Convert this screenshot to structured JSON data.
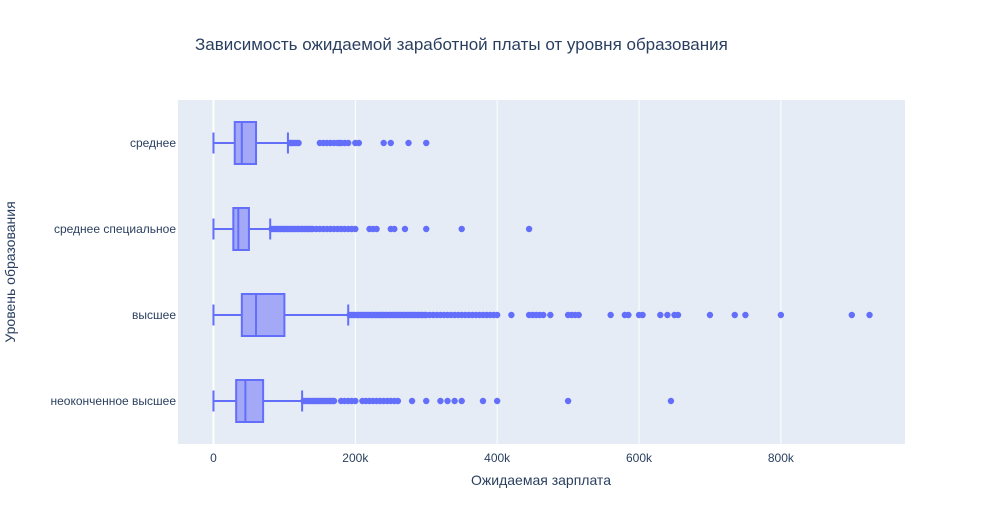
{
  "chart_data": {
    "type": "box",
    "orientation": "horizontal",
    "title": "Зависимость ожидаемой заработной платы от уровня образования",
    "xlabel": "Ожидаемая зарплата",
    "ylabel": "Уровень образования",
    "xlim": [
      -50000,
      975000
    ],
    "x_ticks": [
      {
        "value": 0,
        "label": "0"
      },
      {
        "value": 200000,
        "label": "200k"
      },
      {
        "value": 400000,
        "label": "400k"
      },
      {
        "value": 600000,
        "label": "600k"
      },
      {
        "value": 800000,
        "label": "800k"
      }
    ],
    "grid": true,
    "color": "#636efa",
    "fill_color": "#a3a8f7",
    "background": "#e5ecf6",
    "categories": [
      "среднее",
      "среднее специальное",
      "высшее",
      "неоконченное высшее"
    ],
    "boxes": [
      {
        "category": "среднее",
        "min": 0,
        "q1": 30000,
        "median": 40000,
        "q3": 60000,
        "whisker_high": 105000,
        "outliers": [
          108000,
          110000,
          112000,
          115000,
          118000,
          120000,
          150000,
          155000,
          160000,
          165000,
          170000,
          175000,
          178000,
          180000,
          185000,
          190000,
          200000,
          205000,
          240000,
          250000,
          275000,
          300000
        ]
      },
      {
        "category": "среднее специальное",
        "min": 0,
        "q1": 28000,
        "median": 35000,
        "q3": 50000,
        "whisker_high": 80000,
        "outliers": [
          82000,
          85000,
          88000,
          90000,
          93000,
          95000,
          98000,
          100000,
          103000,
          105000,
          108000,
          110000,
          113000,
          115000,
          118000,
          120000,
          123000,
          125000,
          128000,
          130000,
          133000,
          135000,
          138000,
          140000,
          145000,
          150000,
          155000,
          160000,
          165000,
          170000,
          175000,
          180000,
          185000,
          190000,
          195000,
          200000,
          220000,
          225000,
          230000,
          250000,
          255000,
          270000,
          300000,
          350000,
          445000
        ]
      },
      {
        "category": "высшее",
        "min": 0,
        "q1": 40000,
        "median": 60000,
        "q3": 100000,
        "whisker_high": 190000,
        "outliers": [
          192000,
          195000,
          198000,
          200000,
          203000,
          205000,
          208000,
          210000,
          213000,
          215000,
          218000,
          220000,
          223000,
          225000,
          228000,
          230000,
          233000,
          235000,
          238000,
          240000,
          243000,
          245000,
          248000,
          250000,
          253000,
          255000,
          258000,
          260000,
          263000,
          265000,
          268000,
          270000,
          273000,
          275000,
          278000,
          280000,
          283000,
          285000,
          288000,
          290000,
          293000,
          295000,
          298000,
          300000,
          305000,
          310000,
          315000,
          320000,
          325000,
          330000,
          335000,
          340000,
          345000,
          350000,
          355000,
          360000,
          365000,
          370000,
          375000,
          380000,
          385000,
          390000,
          395000,
          400000,
          420000,
          445000,
          450000,
          455000,
          460000,
          465000,
          475000,
          500000,
          505000,
          510000,
          515000,
          560000,
          580000,
          585000,
          600000,
          605000,
          630000,
          640000,
          650000,
          655000,
          700000,
          735000,
          750000,
          800000,
          900000,
          925000
        ]
      },
      {
        "category": "неоконченное высшее",
        "min": 0,
        "q1": 32000,
        "median": 45000,
        "q3": 70000,
        "whisker_high": 125000,
        "outliers": [
          127000,
          130000,
          133000,
          135000,
          138000,
          140000,
          143000,
          145000,
          148000,
          150000,
          153000,
          155000,
          158000,
          160000,
          163000,
          165000,
          168000,
          170000,
          180000,
          185000,
          190000,
          195000,
          200000,
          210000,
          215000,
          220000,
          225000,
          230000,
          235000,
          240000,
          245000,
          250000,
          255000,
          260000,
          280000,
          300000,
          320000,
          330000,
          340000,
          350000,
          380000,
          400000,
          500000,
          645000
        ]
      }
    ]
  }
}
